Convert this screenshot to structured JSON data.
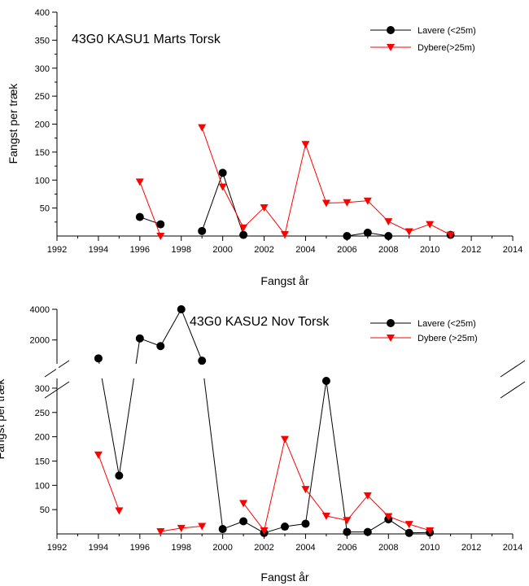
{
  "chart_data": [
    {
      "type": "line",
      "title": "43G0 KASU1 Marts Torsk",
      "xlabel": "Fangst år",
      "ylabel": "Fangst per træk",
      "xlim": [
        1992,
        2014
      ],
      "ylim": [
        0,
        400
      ],
      "xticks": [
        "1992",
        "1994",
        "1996",
        "1998",
        "2000",
        "2002",
        "2004",
        "2006",
        "2008",
        "2010",
        "2012",
        "2014"
      ],
      "yticks": [
        "50",
        "100",
        "150",
        "200",
        "250",
        "300",
        "350",
        "400"
      ],
      "ytick_values": [
        50,
        100,
        150,
        200,
        250,
        300,
        350,
        400
      ],
      "legend_position": "top-right",
      "series": [
        {
          "name": "Lavere (<25m)",
          "color": "#000000",
          "marker": "circle",
          "segments": [
            [
              [
                1996,
                34
              ],
              [
                1997,
                21
              ]
            ],
            [
              [
                1999,
                9
              ],
              [
                2000,
                113
              ],
              [
                2001,
                2
              ]
            ],
            [
              [
                2006,
                0
              ],
              [
                2007,
                6
              ],
              [
                2008,
                0
              ]
            ],
            [
              [
                2011,
                2
              ]
            ]
          ]
        },
        {
          "name": "Dybere(>25m)",
          "color": "#ff0000",
          "marker": "triangle-down",
          "segments": [
            [
              [
                1996,
                97
              ],
              [
                1997,
                0
              ]
            ],
            [
              [
                1999,
                194
              ],
              [
                2000,
                88
              ],
              [
                2001,
                15
              ],
              [
                2002,
                51
              ],
              [
                2003,
                3
              ],
              [
                2004,
                164
              ],
              [
                2005,
                59
              ],
              [
                2006,
                60
              ],
              [
                2007,
                63
              ],
              [
                2008,
                26
              ],
              [
                2009,
                8
              ],
              [
                2010,
                21
              ],
              [
                2011,
                2
              ]
            ]
          ]
        }
      ]
    },
    {
      "type": "line",
      "title": "43G0 KASU2 Nov Torsk",
      "xlabel": "Fangst år",
      "ylabel": "Fangst per træk",
      "xlim": [
        1992,
        2014
      ],
      "ylim": [
        0,
        4000
      ],
      "axis_break": [
        320,
        500
      ],
      "xticks": [
        "1992",
        "1994",
        "1996",
        "1998",
        "2000",
        "2002",
        "2004",
        "2006",
        "2008",
        "2010",
        "2012",
        "2014"
      ],
      "yticks": [
        "50",
        "100",
        "150",
        "200",
        "250",
        "300",
        "2000",
        "4000"
      ],
      "ytick_values": [
        50,
        100,
        150,
        200,
        250,
        300,
        2000,
        4000
      ],
      "legend_position": "top-right",
      "series": [
        {
          "name": "Lavere (<25m)",
          "color": "#000000",
          "marker": "circle",
          "segments": [
            [
              [
                1994,
                800
              ],
              [
                1995,
                120
              ],
              [
                1996,
                2100
              ],
              [
                1997,
                1600
              ],
              [
                1998,
                4000
              ],
              [
                1999,
                650
              ],
              [
                2000,
                10
              ],
              [
                2001,
                26
              ],
              [
                2002,
                2
              ],
              [
                2003,
                15
              ],
              [
                2004,
                21
              ],
              [
                2005,
                315
              ],
              [
                2006,
                4
              ],
              [
                2007,
                4
              ],
              [
                2008,
                30
              ],
              [
                2009,
                2
              ],
              [
                2010,
                3
              ]
            ]
          ]
        },
        {
          "name": "Dybere (>25m)",
          "color": "#ff0000",
          "marker": "triangle-down",
          "segments": [
            [
              [
                1994,
                163
              ],
              [
                1995,
                48
              ]
            ],
            [
              [
                1997,
                5
              ],
              [
                1998,
                12
              ],
              [
                1999,
                16
              ]
            ],
            [
              [
                2001,
                63
              ],
              [
                2002,
                7
              ],
              [
                2003,
                195
              ],
              [
                2004,
                92
              ],
              [
                2005,
                37
              ],
              [
                2006,
                28
              ],
              [
                2007,
                79
              ],
              [
                2008,
                36
              ],
              [
                2009,
                20
              ],
              [
                2010,
                7
              ]
            ]
          ]
        }
      ]
    }
  ]
}
